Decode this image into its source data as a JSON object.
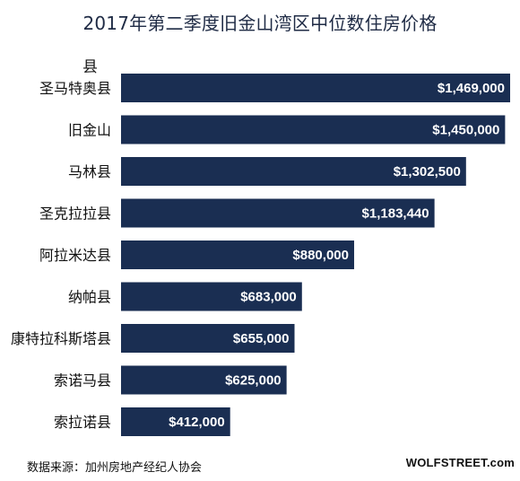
{
  "chart_data": {
    "type": "bar",
    "orientation": "horizontal",
    "title": "2017年第二季度旧金山湾区中位数住房价格",
    "category_axis_label": "县",
    "categories": [
      "圣马特奥县",
      "旧金山",
      "马林县",
      "圣克拉拉县",
      "阿拉米达县",
      "纳帕县",
      "康特拉科斯塔县",
      "索诺马县",
      "索拉诺县"
    ],
    "values": [
      1469000,
      1450000,
      1302500,
      1183440,
      880000,
      683000,
      655000,
      625000,
      412000
    ],
    "value_labels": [
      "$1,469,000",
      "$1,450,000",
      "$1,302,500",
      "$1,183,440",
      "$880,000",
      "$683,000",
      "$655,000",
      "$625,000",
      "$412,000"
    ],
    "bar_color": "#1a2e52",
    "label_color": "#ffffff",
    "grid": false,
    "legend": "none"
  },
  "footer": {
    "source": "数据来源：加州房地产经纪人协会",
    "brand": "WOLFSTREET.com"
  }
}
